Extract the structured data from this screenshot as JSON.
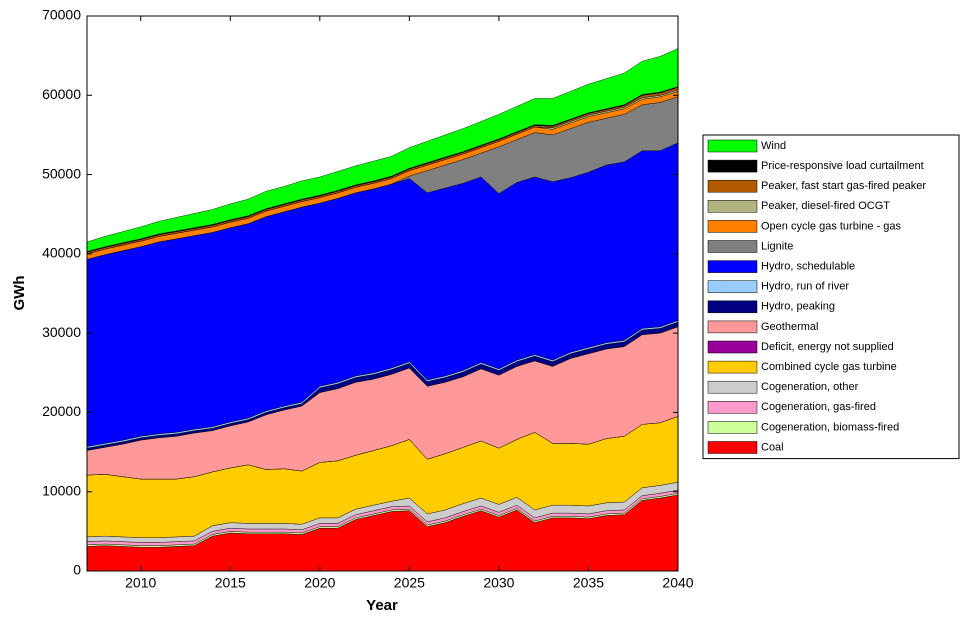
{
  "chart_data": {
    "type": "stacked-area",
    "x": [
      2007,
      2008,
      2009,
      2010,
      2011,
      2012,
      2013,
      2014,
      2015,
      2016,
      2017,
      2018,
      2019,
      2020,
      2021,
      2022,
      2023,
      2024,
      2025,
      2026,
      2027,
      2028,
      2029,
      2030,
      2031,
      2032,
      2033,
      2034,
      2035,
      2036,
      2037,
      2038,
      2039,
      2040
    ],
    "xlim": [
      2007,
      2040
    ],
    "xticks": [
      2010,
      2015,
      2020,
      2025,
      2030,
      2035,
      2040
    ],
    "ylim": [
      0,
      70000
    ],
    "yticks": [
      0,
      10000,
      20000,
      30000,
      40000,
      50000,
      60000,
      70000
    ],
    "xlabel": "Year",
    "ylabel": "GWh",
    "grid": false,
    "legend": "right",
    "series": [
      {
        "name": "Coal",
        "color": "#ff0000",
        "values": [
          3100,
          3200,
          3100,
          3000,
          3000,
          3100,
          3200,
          4400,
          4800,
          4700,
          4700,
          4700,
          4600,
          5400,
          5400,
          6500,
          7000,
          7500,
          7600,
          5600,
          6100,
          6900,
          7600,
          6800,
          7700,
          6100,
          6700,
          6700,
          6600,
          7000,
          7100,
          8900,
          9200,
          9600
        ]
      },
      {
        "name": "Cogeneration, biomass-fired",
        "color": "#ccff99",
        "values": [
          200,
          200,
          200,
          200,
          200,
          200,
          200,
          200,
          200,
          200,
          200,
          200,
          200,
          200,
          200,
          200,
          200,
          200,
          200,
          200,
          200,
          200,
          200,
          200,
          200,
          200,
          200,
          200,
          200,
          200,
          200,
          200,
          200,
          200
        ]
      },
      {
        "name": "Cogeneration, gas-fired",
        "color": "#ff99cc",
        "values": [
          400,
          400,
          400,
          400,
          400,
          400,
          400,
          400,
          400,
          400,
          400,
          400,
          400,
          400,
          400,
          400,
          400,
          400,
          400,
          400,
          400,
          400,
          400,
          400,
          400,
          400,
          400,
          400,
          400,
          400,
          400,
          400,
          400,
          400
        ]
      },
      {
        "name": "Cogeneration, other",
        "color": "#cccccc",
        "values": [
          600,
          600,
          600,
          600,
          600,
          600,
          600,
          700,
          700,
          700,
          700,
          700,
          700,
          700,
          700,
          700,
          700,
          700,
          1000,
          1000,
          1000,
          1000,
          1000,
          1000,
          1000,
          1000,
          1000,
          1000,
          1000,
          1000,
          1000,
          1000,
          1000,
          1000
        ]
      },
      {
        "name": "Combined cycle gas turbine",
        "color": "#ffcc00",
        "values": [
          7800,
          7800,
          7600,
          7400,
          7400,
          7300,
          7500,
          6800,
          6900,
          7400,
          6800,
          6900,
          6700,
          7000,
          7200,
          6800,
          6900,
          7000,
          7400,
          6900,
          7100,
          7100,
          7200,
          7100,
          7300,
          9800,
          7800,
          7800,
          7800,
          8100,
          8300,
          8000,
          7900,
          8300
        ]
      },
      {
        "name": "Deficit, energy not supplied",
        "color": "#990099",
        "values": [
          0,
          0,
          0,
          0,
          0,
          0,
          0,
          0,
          0,
          0,
          0,
          0,
          0,
          0,
          0,
          0,
          0,
          0,
          0,
          0,
          0,
          0,
          0,
          0,
          0,
          0,
          0,
          0,
          0,
          0,
          0,
          0,
          0,
          0
        ]
      },
      {
        "name": "Geothermal",
        "color": "#ff9999",
        "values": [
          3100,
          3400,
          4100,
          4900,
          5200,
          5400,
          5500,
          5200,
          5300,
          5400,
          6900,
          7400,
          8200,
          8800,
          9100,
          9200,
          9000,
          9000,
          9000,
          9200,
          9000,
          8900,
          9100,
          9200,
          9200,
          9000,
          9700,
          10700,
          11400,
          11300,
          11300,
          11300,
          11300,
          11300
        ]
      },
      {
        "name": "Hydro, peaking",
        "color": "#000080",
        "values": [
          300,
          300,
          300,
          300,
          300,
          300,
          300,
          300,
          300,
          300,
          300,
          300,
          300,
          600,
          600,
          600,
          600,
          600,
          600,
          600,
          600,
          600,
          600,
          600,
          600,
          600,
          600,
          600,
          600,
          600,
          600,
          600,
          600,
          600
        ]
      },
      {
        "name": "Hydro, run of river",
        "color": "#99ccff",
        "values": [
          200,
          200,
          200,
          200,
          200,
          200,
          200,
          200,
          200,
          200,
          200,
          200,
          200,
          200,
          200,
          200,
          200,
          200,
          200,
          200,
          200,
          200,
          200,
          200,
          200,
          200,
          200,
          200,
          200,
          200,
          200,
          200,
          200,
          200
        ]
      },
      {
        "name": "Hydro, schedulable",
        "color": "#0000ff",
        "values": [
          23600,
          23800,
          23900,
          23900,
          24200,
          24400,
          24400,
          24500,
          24500,
          24500,
          24500,
          24500,
          24600,
          23100,
          23200,
          23100,
          23200,
          23200,
          23100,
          23600,
          23700,
          23600,
          23400,
          22100,
          22400,
          22400,
          22500,
          22000,
          22100,
          22400,
          22500,
          22400,
          22200,
          22400
        ]
      },
      {
        "name": "Lignite",
        "color": "#808080",
        "values": [
          0,
          0,
          0,
          0,
          0,
          0,
          0,
          0,
          0,
          0,
          0,
          0,
          0,
          0,
          0,
          0,
          0,
          0,
          300,
          2800,
          2900,
          3000,
          3000,
          5900,
          5400,
          5600,
          5900,
          6200,
          6300,
          5900,
          6000,
          5800,
          6100,
          5800
        ]
      },
      {
        "name": "Open cycle gas turbine - gas",
        "color": "#ff8000",
        "values": [
          700,
          700,
          700,
          700,
          700,
          700,
          700,
          700,
          700,
          700,
          700,
          700,
          700,
          700,
          700,
          700,
          700,
          700,
          700,
          700,
          700,
          700,
          700,
          700,
          700,
          700,
          700,
          700,
          700,
          700,
          700,
          700,
          700,
          700
        ]
      },
      {
        "name": "Peaker, diesel-fired OCGT",
        "color": "#b3b380",
        "values": [
          0,
          0,
          0,
          0,
          0,
          0,
          0,
          0,
          0,
          0,
          0,
          0,
          0,
          0,
          0,
          0,
          0,
          0,
          0,
          0,
          0,
          0,
          0,
          0,
          0,
          0,
          200,
          200,
          200,
          200,
          200,
          200,
          200,
          200
        ]
      },
      {
        "name": "Peaker, fast start gas-fired peaker",
        "color": "#b35900",
        "values": [
          200,
          200,
          200,
          200,
          200,
          200,
          200,
          200,
          200,
          200,
          200,
          200,
          200,
          200,
          200,
          200,
          200,
          200,
          200,
          200,
          200,
          200,
          200,
          200,
          200,
          200,
          200,
          200,
          200,
          200,
          200,
          300,
          300,
          300
        ]
      },
      {
        "name": "Price-responsive load curtailment",
        "color": "#000000",
        "values": [
          100,
          100,
          100,
          100,
          100,
          100,
          100,
          100,
          100,
          100,
          100,
          100,
          100,
          100,
          100,
          100,
          100,
          100,
          100,
          100,
          100,
          100,
          100,
          100,
          100,
          100,
          100,
          100,
          100,
          100,
          100,
          100,
          100,
          100
        ]
      },
      {
        "name": "Wind",
        "color": "#00ff00",
        "values": [
          1200,
          1300,
          1400,
          1500,
          1600,
          1700,
          1800,
          1900,
          2000,
          2100,
          2200,
          2200,
          2300,
          2300,
          2400,
          2400,
          2500,
          2500,
          2600,
          2700,
          2800,
          2900,
          3000,
          3100,
          3200,
          3300,
          3400,
          3500,
          3600,
          3800,
          4000,
          4200,
          4500,
          4800
        ]
      }
    ]
  }
}
